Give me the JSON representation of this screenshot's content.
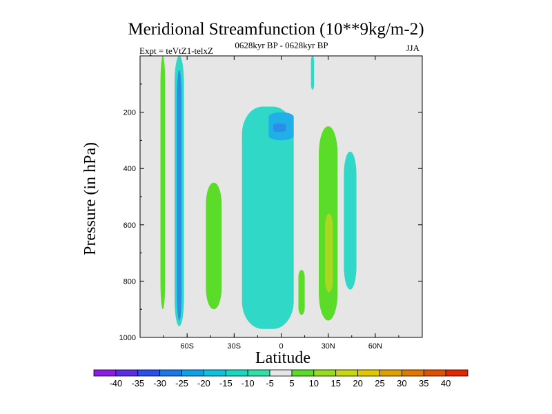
{
  "chart_data": {
    "type": "contour",
    "title": "Meridional Streamfunction (10**9kg/m-2)",
    "experiment_label": "Expt = teVtZ1-telxZ",
    "center_label": "0628kyr BP - 0628kyr BP",
    "season_label": "JJA",
    "xlabel": "Latitude",
    "ylabel": "Pressure (in hPa)",
    "xlim": [
      -90,
      90
    ],
    "ylim": [
      1000,
      0
    ],
    "x_ticks": [
      {
        "value": -60,
        "label": "60S"
      },
      {
        "value": -30,
        "label": "30S"
      },
      {
        "value": 0,
        "label": "0"
      },
      {
        "value": 30,
        "label": "30N"
      },
      {
        "value": 60,
        "label": "60N"
      }
    ],
    "y_ticks": [
      {
        "value": 200,
        "label": "200"
      },
      {
        "value": 400,
        "label": "400"
      },
      {
        "value": 600,
        "label": "600"
      },
      {
        "value": 800,
        "label": "800"
      },
      {
        "value": 1000,
        "label": "1000"
      }
    ],
    "background_color": "#e6e6e6",
    "colorbar": {
      "labels": [
        "-40",
        "-35",
        "-30",
        "-25",
        "-20",
        "-15",
        "-10",
        "-5",
        "5",
        "10",
        "15",
        "20",
        "25",
        "30",
        "35",
        "40"
      ],
      "colors": [
        "#8a1ee0",
        "#5a2ee0",
        "#2a4ee8",
        "#1a78e8",
        "#10a0e8",
        "#10c0e0",
        "#18d8c0",
        "#30e0a8",
        "#e6e6e6",
        "#5adc28",
        "#98dc20",
        "#c8d810",
        "#e0c800",
        "#e0a000",
        "#e07800",
        "#e05000",
        "#e02800"
      ]
    },
    "features": [
      {
        "name": "band-75S-positive",
        "level": 10,
        "lon_range": [
          -77,
          -74
        ],
        "p_range": [
          0,
          900
        ]
      },
      {
        "name": "band-65S-negative",
        "level": -10,
        "lon_range": [
          -68,
          -62
        ],
        "p_range": [
          0,
          960
        ]
      },
      {
        "name": "band-65S-core",
        "level": -20,
        "lon_range": [
          -66.5,
          -63.5
        ],
        "p_range": [
          50,
          940
        ]
      },
      {
        "name": "blob-45S-positive",
        "level": 10,
        "lon_range": [
          -48,
          -38
        ],
        "p_range": [
          450,
          900
        ]
      },
      {
        "name": "equatorial-negative-cell",
        "level": -10,
        "lon_range": [
          -25,
          8
        ],
        "p_range": [
          180,
          970
        ]
      },
      {
        "name": "equatorial-core",
        "level": -15,
        "lon_range": [
          -8,
          8
        ],
        "p_range": [
          200,
          300
        ]
      },
      {
        "name": "equatorial-deep-core",
        "level": -20,
        "lon_range": [
          -5,
          3
        ],
        "p_range": [
          240,
          270
        ]
      },
      {
        "name": "blob-10N-positive",
        "level": 10,
        "lon_range": [
          11,
          15
        ],
        "p_range": [
          760,
          920
        ]
      },
      {
        "name": "strip-20N-negative",
        "level": -10,
        "lon_range": [
          19,
          21
        ],
        "p_range": [
          0,
          120
        ]
      },
      {
        "name": "blob-30N-positive",
        "level": 10,
        "lon_range": [
          24,
          36
        ],
        "p_range": [
          250,
          940
        ]
      },
      {
        "name": "blob-30N-core",
        "level": 15,
        "lon_range": [
          28,
          33
        ],
        "p_range": [
          560,
          840
        ]
      },
      {
        "name": "blob-45N-negative",
        "level": -10,
        "lon_range": [
          40,
          48
        ],
        "p_range": [
          340,
          830
        ]
      }
    ]
  }
}
